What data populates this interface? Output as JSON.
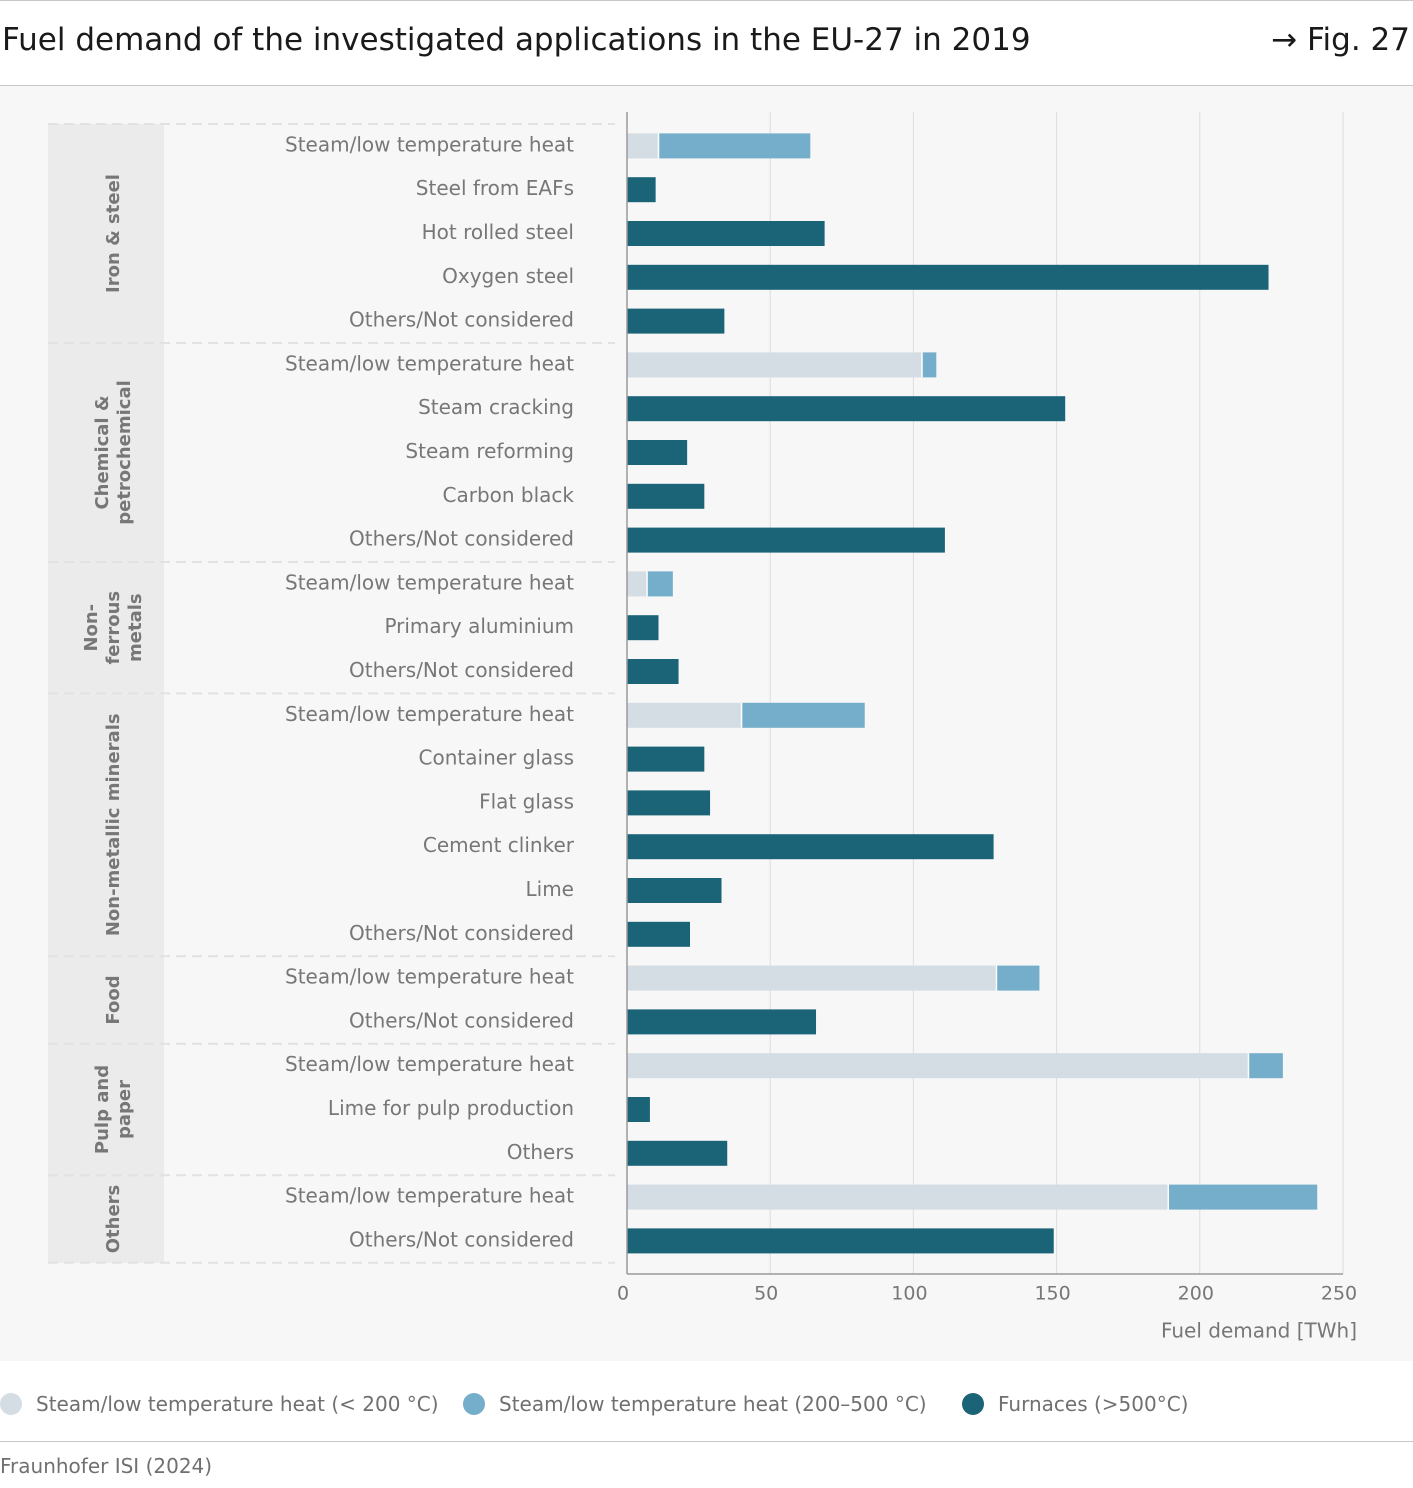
{
  "header": {
    "title": "Fuel demand of the investigated applications in the EU-27 in 2019",
    "figure_ref": "→ Fig. 27"
  },
  "colors": {
    "steam_low": "#d3dde3",
    "steam_mid": "#74aeca",
    "furnaces": "#1b6478",
    "group_band": "#ebebeb",
    "text": "#777777"
  },
  "legend": {
    "items": [
      {
        "label": "Steam/low temperature heat (< 200 °C)",
        "color": "#d3dde3"
      },
      {
        "label": "Steam/low temperature heat (200–500 °C)",
        "color": "#74aeca"
      },
      {
        "label": "Furnaces (>500°C)",
        "color": "#1b6478"
      }
    ]
  },
  "source": "Fraunhofer ISI (2024)",
  "chart_data": {
    "type": "bar",
    "orientation": "horizontal",
    "stacked": true,
    "xlabel": "Fuel demand [TWh]",
    "xlim": [
      0,
      250
    ],
    "xticks": [
      0,
      50,
      100,
      150,
      200,
      250
    ],
    "grid": true,
    "legend_position": "bottom",
    "series_names": [
      "Steam/low temperature heat (< 200 °C)",
      "Steam/low temperature heat (200–500 °C)",
      "Furnaces (>500°C)"
    ],
    "groups": [
      {
        "name": [
          "Iron & steel"
        ],
        "rows": [
          {
            "label": "Steam/low temperature heat",
            "values": [
              11,
              53,
              0
            ]
          },
          {
            "label": "Steel from EAFs",
            "values": [
              0,
              0,
              10
            ]
          },
          {
            "label": "Hot rolled steel",
            "values": [
              0,
              0,
              69
            ]
          },
          {
            "label": "Oxygen steel",
            "values": [
              0,
              0,
              224
            ]
          },
          {
            "label": "Others/Not considered",
            "values": [
              0,
              0,
              34
            ]
          }
        ]
      },
      {
        "name": [
          "Chemical &",
          "petrochemical"
        ],
        "rows": [
          {
            "label": "Steam/low temperature heat",
            "values": [
              103,
              5,
              0
            ]
          },
          {
            "label": "Steam cracking",
            "values": [
              0,
              0,
              153
            ]
          },
          {
            "label": "Steam reforming",
            "values": [
              0,
              0,
              21
            ]
          },
          {
            "label": "Carbon black",
            "values": [
              0,
              0,
              27
            ]
          },
          {
            "label": "Others/Not considered",
            "values": [
              0,
              0,
              111
            ]
          }
        ]
      },
      {
        "name": [
          "Non-",
          "ferrous",
          "metals"
        ],
        "rows": [
          {
            "label": "Steam/low temperature heat",
            "values": [
              7,
              9,
              0
            ]
          },
          {
            "label": "Primary aluminium",
            "values": [
              0,
              0,
              11
            ]
          },
          {
            "label": "Others/Not considered",
            "values": [
              0,
              0,
              18
            ]
          }
        ]
      },
      {
        "name": [
          "Non-metallic minerals"
        ],
        "rows": [
          {
            "label": "Steam/low temperature heat",
            "values": [
              40,
              43,
              0
            ]
          },
          {
            "label": "Container glass",
            "values": [
              0,
              0,
              27
            ]
          },
          {
            "label": "Flat glass",
            "values": [
              0,
              0,
              29
            ]
          },
          {
            "label": "Cement clinker",
            "values": [
              0,
              0,
              128
            ]
          },
          {
            "label": "Lime",
            "values": [
              0,
              0,
              33
            ]
          },
          {
            "label": "Others/Not considered",
            "values": [
              0,
              0,
              22
            ]
          }
        ]
      },
      {
        "name": [
          "Food"
        ],
        "rows": [
          {
            "label": "Steam/low temperature heat",
            "values": [
              129,
              15,
              0
            ]
          },
          {
            "label": "Others/Not considered",
            "values": [
              0,
              0,
              66
            ]
          }
        ]
      },
      {
        "name": [
          "Pulp and",
          "paper"
        ],
        "rows": [
          {
            "label": "Steam/low temperature heat",
            "values": [
              217,
              12,
              0
            ]
          },
          {
            "label": "Lime for pulp production",
            "values": [
              0,
              0,
              8
            ]
          },
          {
            "label": "Others",
            "values": [
              0,
              0,
              35
            ]
          }
        ]
      },
      {
        "name": [
          "Others"
        ],
        "rows": [
          {
            "label": "Steam/low temperature heat",
            "values": [
              189,
              52,
              0
            ]
          },
          {
            "label": "Others/Not considered",
            "values": [
              0,
              0,
              149
            ]
          }
        ]
      }
    ]
  }
}
